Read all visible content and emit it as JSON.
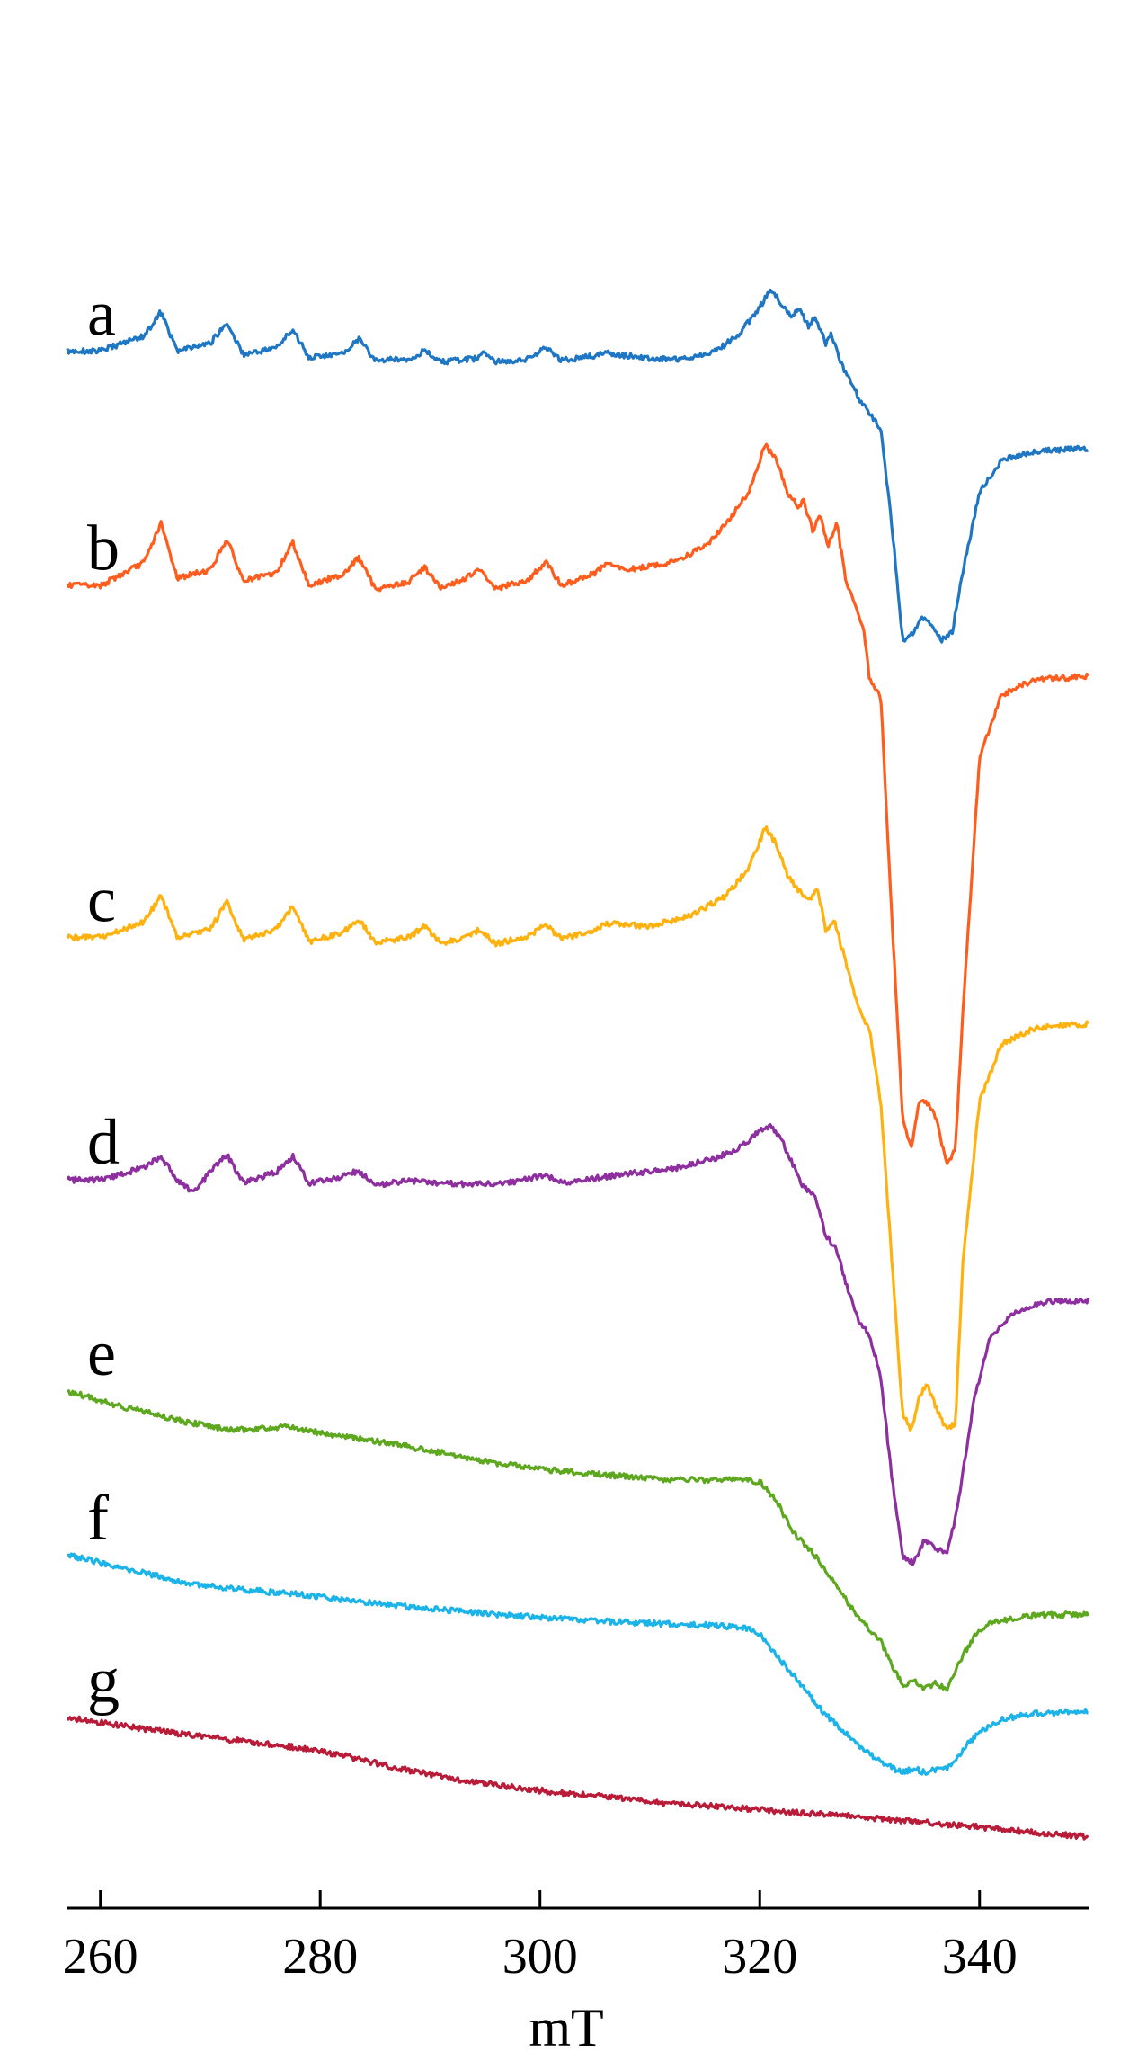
{
  "chart_data": {
    "type": "line",
    "title": "",
    "xlabel": "mT",
    "ylabel": "",
    "xlim": [
      257,
      350
    ],
    "x_ticks": [
      260,
      280,
      300,
      320,
      340
    ],
    "grid": false,
    "legend": "none",
    "y_axis": "hidden (stacked spectra, arbitrary units with vertical offsets)",
    "ylim": [
      -100,
      15
    ],
    "series": [
      {
        "name": "a",
        "color": "#1f77c4",
        "points": [
          [
            257,
            -4
          ],
          [
            260,
            -4
          ],
          [
            264,
            -3
          ],
          [
            265.5,
            -1.5
          ],
          [
            267,
            -4
          ],
          [
            270,
            -3.5
          ],
          [
            271.5,
            -2.2
          ],
          [
            273,
            -4.2
          ],
          [
            276,
            -3.8
          ],
          [
            277.5,
            -2.6
          ],
          [
            279,
            -4.4
          ],
          [
            282,
            -4.2
          ],
          [
            283.5,
            -3.2
          ],
          [
            285,
            -4.6
          ],
          [
            288,
            -4.5
          ],
          [
            289.5,
            -4
          ],
          [
            291,
            -4.7
          ],
          [
            294,
            -4.5
          ],
          [
            295,
            -4.1
          ],
          [
            296,
            -4.7
          ],
          [
            299,
            -4.5
          ],
          [
            300.5,
            -3.8
          ],
          [
            302,
            -4.6
          ],
          [
            305,
            -4.3
          ],
          [
            306,
            -4.1
          ],
          [
            310,
            -4.5
          ],
          [
            313,
            -4.5
          ],
          [
            316,
            -4
          ],
          [
            318,
            -3
          ],
          [
            320,
            -1.2
          ],
          [
            321,
            0
          ],
          [
            322,
            -1
          ],
          [
            323,
            -1.8
          ],
          [
            323.5,
            -1.2
          ],
          [
            324.5,
            -2.5
          ],
          [
            325,
            -1.8
          ],
          [
            326,
            -3.5
          ],
          [
            326.5,
            -2.8
          ],
          [
            327.5,
            -5
          ],
          [
            329,
            -7
          ],
          [
            330,
            -8
          ],
          [
            331,
            -9
          ],
          [
            332,
            -15
          ],
          [
            333,
            -22.5
          ],
          [
            334,
            -22
          ],
          [
            334.8,
            -21
          ],
          [
            335.5,
            -21.5
          ],
          [
            336.5,
            -22.5
          ],
          [
            337.5,
            -22
          ],
          [
            338.5,
            -18
          ],
          [
            340,
            -13
          ],
          [
            342,
            -11
          ],
          [
            345,
            -10.4
          ],
          [
            350,
            -10.2
          ]
        ]
      },
      {
        "name": "b",
        "color": "#ff5d1e",
        "points": [
          [
            257,
            -19
          ],
          [
            260,
            -19
          ],
          [
            264,
            -17.5
          ],
          [
            265.5,
            -15
          ],
          [
            267,
            -18.5
          ],
          [
            270,
            -18
          ],
          [
            271.5,
            -16
          ],
          [
            273,
            -18.7
          ],
          [
            276,
            -18.2
          ],
          [
            277.5,
            -16.2
          ],
          [
            279,
            -19
          ],
          [
            282,
            -18.3
          ],
          [
            283.5,
            -17.2
          ],
          [
            285,
            -19.2
          ],
          [
            288,
            -18.8
          ],
          [
            289.5,
            -17.8
          ],
          [
            291,
            -19.2
          ],
          [
            293,
            -18.6
          ],
          [
            294.5,
            -18
          ],
          [
            296,
            -19.2
          ],
          [
            299,
            -18.6
          ],
          [
            300.5,
            -17.5
          ],
          [
            302,
            -19
          ],
          [
            305,
            -18.2
          ],
          [
            306,
            -17.6
          ],
          [
            308,
            -18
          ],
          [
            312,
            -17.5
          ],
          [
            315,
            -16.5
          ],
          [
            317,
            -15
          ],
          [
            319,
            -13
          ],
          [
            320.5,
            -10
          ],
          [
            321.5,
            -11
          ],
          [
            322.5,
            -13
          ],
          [
            323.5,
            -14
          ],
          [
            324,
            -13.5
          ],
          [
            324.8,
            -15.5
          ],
          [
            325.5,
            -14.5
          ],
          [
            326.2,
            -16.5
          ],
          [
            327,
            -15
          ],
          [
            327.8,
            -18.5
          ],
          [
            328.5,
            -20
          ],
          [
            329.5,
            -22
          ],
          [
            330,
            -25
          ],
          [
            331,
            -26
          ],
          [
            332,
            -40
          ],
          [
            333,
            -53
          ],
          [
            333.8,
            -55
          ],
          [
            334.5,
            -52
          ],
          [
            335.2,
            -52
          ],
          [
            336,
            -53
          ],
          [
            337,
            -56
          ],
          [
            337.8,
            -55
          ],
          [
            338.5,
            -46
          ],
          [
            340,
            -30
          ],
          [
            342,
            -26
          ],
          [
            345,
            -25
          ],
          [
            350,
            -24.8
          ]
        ]
      },
      {
        "name": "c",
        "color": "#ffb20f",
        "points": [
          [
            257,
            -41.5
          ],
          [
            260,
            -41.5
          ],
          [
            264,
            -40.5
          ],
          [
            265.5,
            -38.8
          ],
          [
            267,
            -41.5
          ],
          [
            270,
            -41
          ],
          [
            271.5,
            -39.2
          ],
          [
            273,
            -41.6
          ],
          [
            276,
            -41
          ],
          [
            277.5,
            -39.5
          ],
          [
            279,
            -41.8
          ],
          [
            282,
            -41.2
          ],
          [
            283.5,
            -40.3
          ],
          [
            285,
            -41.8
          ],
          [
            288,
            -41.5
          ],
          [
            289.5,
            -40.8
          ],
          [
            291,
            -41.9
          ],
          [
            293,
            -41.5
          ],
          [
            294.5,
            -41
          ],
          [
            296,
            -41.9
          ],
          [
            299,
            -41.4
          ],
          [
            300.5,
            -40.7
          ],
          [
            302,
            -41.6
          ],
          [
            305,
            -41
          ],
          [
            306,
            -40.6
          ],
          [
            310,
            -40.8
          ],
          [
            314,
            -40
          ],
          [
            317,
            -38.8
          ],
          [
            319,
            -37
          ],
          [
            320.5,
            -34.5
          ],
          [
            321.5,
            -35.5
          ],
          [
            322.5,
            -37.5
          ],
          [
            323.5,
            -38.5
          ],
          [
            324.5,
            -39
          ],
          [
            325.3,
            -38.5
          ],
          [
            326,
            -41
          ],
          [
            326.8,
            -40.5
          ],
          [
            327.8,
            -43
          ],
          [
            329,
            -46
          ],
          [
            330,
            -47.5
          ],
          [
            331,
            -52
          ],
          [
            332,
            -62
          ],
          [
            333,
            -72
          ],
          [
            333.8,
            -73
          ],
          [
            334.5,
            -71
          ],
          [
            335.2,
            -70
          ],
          [
            336,
            -71.5
          ],
          [
            337,
            -73
          ],
          [
            337.8,
            -72.5
          ],
          [
            338.5,
            -62
          ],
          [
            340,
            -52
          ],
          [
            342,
            -48.3
          ],
          [
            345,
            -47.3
          ],
          [
            350,
            -47
          ]
        ]
      },
      {
        "name": "d",
        "color": "#8e2fa0",
        "points": [
          [
            257,
            -57
          ],
          [
            260,
            -57
          ],
          [
            264,
            -56.2
          ],
          [
            265.5,
            -55.5
          ],
          [
            267,
            -57
          ],
          [
            268.5,
            -57.8
          ],
          [
            270,
            -56.5
          ],
          [
            271.5,
            -55.4
          ],
          [
            273,
            -57.2
          ],
          [
            276,
            -56.5
          ],
          [
            277.5,
            -55.5
          ],
          [
            279,
            -57.2
          ],
          [
            282,
            -56.8
          ],
          [
            283.5,
            -56.4
          ],
          [
            285,
            -57.4
          ],
          [
            288,
            -57
          ],
          [
            290,
            -57.2
          ],
          [
            294,
            -57.3
          ],
          [
            297,
            -57.2
          ],
          [
            299,
            -56.9
          ],
          [
            300.5,
            -56.7
          ],
          [
            302,
            -57.2
          ],
          [
            305,
            -56.9
          ],
          [
            308,
            -56.6
          ],
          [
            312,
            -56.3
          ],
          [
            316,
            -55.6
          ],
          [
            318,
            -55
          ],
          [
            320,
            -53.9
          ],
          [
            321,
            -53.5
          ],
          [
            322,
            -54.5
          ],
          [
            323,
            -56
          ],
          [
            324,
            -57.5
          ],
          [
            325,
            -58
          ],
          [
            326,
            -60.5
          ],
          [
            327,
            -61.5
          ],
          [
            328,
            -64
          ],
          [
            329,
            -66
          ],
          [
            330,
            -67
          ],
          [
            331,
            -69.5
          ],
          [
            332,
            -76
          ],
          [
            333,
            -81
          ],
          [
            334,
            -81.5
          ],
          [
            335,
            -80
          ],
          [
            336,
            -80.5
          ],
          [
            337,
            -81
          ],
          [
            338,
            -78
          ],
          [
            339.5,
            -71
          ],
          [
            341,
            -67
          ],
          [
            343,
            -65.5
          ],
          [
            346,
            -64.8
          ],
          [
            350,
            -64.7
          ]
        ]
      },
      {
        "name": "e",
        "color": "#5ea820",
        "points": [
          [
            257,
            -70.5
          ],
          [
            262,
            -71.5
          ],
          [
            268,
            -72.5
          ],
          [
            272,
            -73
          ],
          [
            277,
            -72.8
          ],
          [
            281,
            -73.3
          ],
          [
            285,
            -73.7
          ],
          [
            290,
            -74.3
          ],
          [
            295,
            -75
          ],
          [
            300,
            -75.5
          ],
          [
            305,
            -75.8
          ],
          [
            310,
            -76.1
          ],
          [
            315,
            -76.2
          ],
          [
            318,
            -76.1
          ],
          [
            320,
            -76.3
          ],
          [
            321.5,
            -77.5
          ],
          [
            323,
            -79.5
          ],
          [
            325,
            -81
          ],
          [
            327,
            -83
          ],
          [
            329,
            -85
          ],
          [
            331,
            -86.5
          ],
          [
            332,
            -88
          ],
          [
            333,
            -89.3
          ],
          [
            334,
            -89
          ],
          [
            335,
            -89.5
          ],
          [
            336,
            -89.2
          ],
          [
            337,
            -89.6
          ],
          [
            338,
            -88
          ],
          [
            339.5,
            -86.2
          ],
          [
            341,
            -85.3
          ],
          [
            344,
            -84.9
          ],
          [
            347,
            -84.8
          ],
          [
            350,
            -84.8
          ]
        ]
      },
      {
        "name": "f",
        "color": "#1cb4e8",
        "points": [
          [
            257,
            -81
          ],
          [
            262,
            -81.8
          ],
          [
            268,
            -82.8
          ],
          [
            273,
            -83.2
          ],
          [
            278,
            -83.5
          ],
          [
            283,
            -83.9
          ],
          [
            288,
            -84.3
          ],
          [
            293,
            -84.6
          ],
          [
            298,
            -84.9
          ],
          [
            303,
            -85.1
          ],
          [
            308,
            -85.3
          ],
          [
            312,
            -85.4
          ],
          [
            316,
            -85.5
          ],
          [
            319,
            -85.7
          ],
          [
            320,
            -86
          ],
          [
            322,
            -87.8
          ],
          [
            324,
            -89.5
          ],
          [
            326,
            -91.2
          ],
          [
            328,
            -92.5
          ],
          [
            330,
            -93.7
          ],
          [
            331,
            -94.2
          ],
          [
            332,
            -94.6
          ],
          [
            333,
            -94.9
          ],
          [
            334,
            -94.6
          ],
          [
            335,
            -94.9
          ],
          [
            336,
            -94.7
          ],
          [
            337,
            -94.7
          ],
          [
            338,
            -94
          ],
          [
            339,
            -93
          ],
          [
            340,
            -92.3
          ],
          [
            342,
            -91.5
          ],
          [
            345,
            -91.1
          ],
          [
            350,
            -91
          ]
        ]
      },
      {
        "name": "g",
        "color": "#b81c38",
        "points": [
          [
            257,
            -91.4
          ],
          [
            262,
            -91.9
          ],
          [
            267,
            -92.4
          ],
          [
            272,
            -92.8
          ],
          [
            277,
            -93.2
          ],
          [
            282,
            -93.8
          ],
          [
            287,
            -94.6
          ],
          [
            292,
            -95.3
          ],
          [
            297,
            -95.8
          ],
          [
            302,
            -96.2
          ],
          [
            307,
            -96.5
          ],
          [
            312,
            -96.9
          ],
          [
            317,
            -97.1
          ],
          [
            322,
            -97.4
          ],
          [
            327,
            -97.6
          ],
          [
            332,
            -97.9
          ],
          [
            337,
            -98.2
          ],
          [
            342,
            -98.5
          ],
          [
            346,
            -98.8
          ],
          [
            350,
            -99
          ]
        ]
      }
    ]
  }
}
